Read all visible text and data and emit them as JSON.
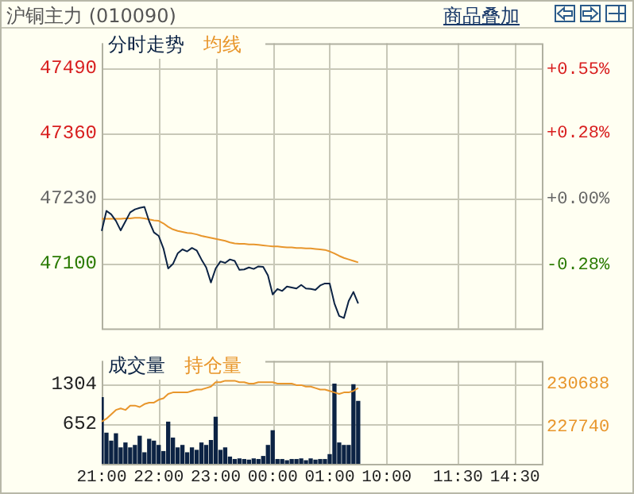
{
  "chart_data": [
    {
      "type": "line",
      "title": "沪铜主力 (010090)",
      "annotations": [
        "商品叠加"
      ],
      "legend": "top left",
      "grid": true,
      "tick_labels": "y",
      "categories": [
        null,
        null,
        null,
        null,
        null,
        null,
        null,
        null,
        null,
        null,
        null,
        null,
        null,
        null,
        null,
        null,
        null,
        null,
        null,
        null,
        null,
        null,
        null,
        null,
        null,
        null,
        null,
        null,
        null,
        null,
        null,
        null,
        null,
        null,
        null,
        null,
        null,
        null,
        null,
        null,
        null,
        null,
        null,
        null,
        null,
        null,
        null,
        null,
        null,
        null,
        null,
        null,
        null,
        null,
        null,
        null,
        null,
        null,
        null,
        null,
        null,
        null,
        null,
        null,
        null,
        null,
        null,
        null,
        null,
        null,
        null,
        null,
        null,
        null,
        null,
        null,
        null,
        null,
        null,
        null,
        null,
        null,
        null,
        null,
        null,
        null,
        null,
        null,
        null,
        null,
        null,
        null,
        null,
        null
      ],
      "ylim": [
        46970,
        47540
      ],
      "yticks": [
        47490,
        47360,
        47230,
        47100
      ],
      "y2lim": [
        -0.55,
        0.66
      ],
      "y2ticks": [
        {
          "value": 0.55,
          "label": "+0.55%"
        },
        {
          "value": 0.28,
          "label": "+0.28%"
        },
        {
          "value": 0,
          "label": "+0.00%"
        },
        {
          "value": -0.28,
          "label": "-0.28%"
        }
      ],
      "series": [
        {
          "name": "分时走势",
          "color": "#0c2344",
          "values": [
            47165,
            47205,
            47198,
            47185,
            47166,
            47184,
            47202,
            47208,
            47211,
            47213,
            47184,
            47162,
            47155,
            47130,
            47090,
            47099,
            47120,
            47128,
            47124,
            47131,
            47126,
            47108,
            47092,
            47062,
            47090,
            47104,
            47101,
            47108,
            47105,
            47087,
            47088,
            47092,
            47089,
            47094,
            47093,
            47076,
            47038,
            47049,
            47045,
            47054,
            47052,
            47050,
            47057,
            47050,
            47049,
            47047,
            47056,
            47060,
            47060,
            47020,
            46995,
            46991,
            47025,
            47043,
            47020,
            null,
            null,
            null,
            null,
            null,
            null,
            null,
            null,
            null,
            null,
            null,
            null,
            null,
            null,
            null,
            null,
            null,
            null,
            null,
            null,
            null,
            null,
            null,
            null,
            null,
            null,
            null,
            null,
            null,
            null,
            null,
            null,
            null,
            null,
            null,
            null,
            null,
            null,
            null
          ]
        },
        {
          "name": "均线",
          "color": "#e8962c",
          "values": [
            47189,
            47189,
            47189,
            47189,
            47189,
            47190,
            47190,
            47191,
            47191,
            47190,
            47188,
            47186,
            47185,
            47180,
            47173,
            47168,
            47165,
            47163,
            47161,
            47160,
            47158,
            47155,
            47153,
            47151,
            47149,
            47147,
            47145,
            47142,
            47140,
            47139,
            47139,
            47138,
            47138,
            47137,
            47136,
            47135,
            47134,
            47134,
            47133,
            47132,
            47132,
            47131,
            47131,
            47130,
            47130,
            47129,
            47128,
            47127,
            47124,
            47120,
            47115,
            47111,
            47108,
            47105,
            47102,
            null,
            null,
            null,
            null,
            null,
            null,
            null,
            null,
            null,
            null,
            null,
            null,
            null,
            null,
            null,
            null,
            null,
            null,
            null,
            null,
            null,
            null,
            null,
            null,
            null,
            null,
            null,
            null,
            null,
            null,
            null,
            null,
            null,
            null,
            null,
            null,
            null,
            null,
            null
          ]
        }
      ]
    },
    {
      "type": "bar",
      "legend": "top left",
      "grid": true,
      "categories": [
        "21:00",
        null,
        null,
        null,
        null,
        null,
        null,
        null,
        null,
        null,
        null,
        null,
        "22:00",
        null,
        null,
        null,
        null,
        null,
        null,
        null,
        null,
        null,
        null,
        null,
        "23:00",
        null,
        null,
        null,
        null,
        null,
        null,
        null,
        null,
        null,
        null,
        null,
        "00:00",
        null,
        null,
        null,
        null,
        null,
        null,
        null,
        null,
        null,
        null,
        null,
        "01:00",
        null,
        null,
        null,
        null,
        null,
        null,
        null,
        null,
        null,
        null,
        null,
        "10:00",
        null,
        null,
        null,
        null,
        null,
        null,
        null,
        null,
        null,
        null,
        null,
        null,
        null,
        null,
        "11:30",
        null,
        null,
        null,
        null,
        null,
        null,
        null,
        null,
        null,
        null,
        null,
        "14:30",
        null,
        null,
        null,
        null,
        null,
        null
      ],
      "ylim": [
        0,
        1680
      ],
      "yticks": [
        652,
        1304
      ],
      "y2lim": [
        225210,
        232260
      ],
      "y2ticks": [
        227740,
        230688
      ],
      "series": [
        {
          "name": "成交量",
          "color": "#0c2344",
          "values": [
            1080,
            500,
            370,
            490,
            260,
            340,
            260,
            300,
            450,
            180,
            400,
            370,
            300,
            200,
            680,
            420,
            260,
            300,
            180,
            260,
            220,
            340,
            300,
            380,
            760,
            220,
            260,
            110,
            70,
            80,
            70,
            60,
            80,
            70,
            120,
            300,
            540,
            70,
            70,
            50,
            70,
            70,
            80,
            50,
            80,
            60,
            70,
            70,
            150,
            1300,
            340,
            300,
            300,
            1290,
            1020,
            null,
            null,
            null,
            null,
            null,
            null,
            null,
            null,
            null,
            null,
            null,
            null,
            null,
            null,
            null,
            null,
            null,
            null,
            null,
            null,
            null,
            null,
            null,
            null,
            null,
            null,
            null,
            null,
            null,
            null,
            null,
            null,
            null,
            null,
            null,
            null,
            null,
            null,
            null
          ]
        },
        {
          "name": "持仓量",
          "type": "line",
          "axis": "y2",
          "color": "#e8962c",
          "values": [
            228100,
            228300,
            228600,
            228900,
            229000,
            228900,
            229200,
            229200,
            229100,
            229300,
            229400,
            229400,
            229600,
            229700,
            230000,
            230100,
            230100,
            230100,
            230100,
            230200,
            230300,
            230300,
            230400,
            230500,
            230800,
            230800,
            230900,
            230900,
            230900,
            230800,
            230800,
            230700,
            230700,
            230800,
            230800,
            230800,
            230800,
            230700,
            230700,
            230700,
            230700,
            230600,
            230600,
            230500,
            230500,
            230400,
            230300,
            230300,
            230200,
            230100,
            230000,
            230100,
            230100,
            230200,
            230400,
            null,
            null,
            null,
            null,
            null,
            null,
            null,
            null,
            null,
            null,
            null,
            null,
            null,
            null,
            null,
            null,
            null,
            null,
            null,
            null,
            null,
            null,
            null,
            null,
            null,
            null,
            null,
            null,
            null,
            null,
            null,
            null,
            null,
            null,
            null,
            null,
            null,
            null,
            null
          ]
        }
      ]
    }
  ]
}
